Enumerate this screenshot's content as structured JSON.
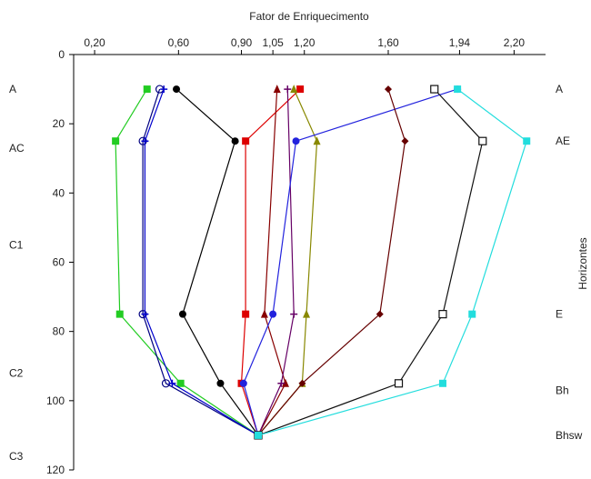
{
  "chart_data": {
    "type": "line",
    "title": "Fator de Enriquecimento",
    "right_axis_label": "Horizontes",
    "x_ticks": [
      "0,20",
      "0,60",
      "0,90",
      "1,05",
      "1,20",
      "1,60",
      "1,94",
      "2,20"
    ],
    "x_tick_values": [
      0.2,
      0.6,
      0.9,
      1.05,
      1.2,
      1.6,
      1.94,
      2.2
    ],
    "xlim": [
      0.1,
      2.35
    ],
    "y_ticks": [
      "0",
      "20",
      "40",
      "60",
      "80",
      "100",
      "120"
    ],
    "y_tick_values": [
      0,
      20,
      40,
      60,
      80,
      100,
      120
    ],
    "ylim": [
      0,
      120
    ],
    "y_inverted": true,
    "left_horizons": [
      {
        "label": "A",
        "depth": 10
      },
      {
        "label": "AC",
        "depth": 27
      },
      {
        "label": "C1",
        "depth": 55
      },
      {
        "label": "C2",
        "depth": 92
      },
      {
        "label": "C3",
        "depth": 116
      }
    ],
    "right_horizons": [
      {
        "label": "A",
        "depth": 10
      },
      {
        "label": "AE",
        "depth": 25
      },
      {
        "label": "E",
        "depth": 75
      },
      {
        "label": "Bh",
        "depth": 97
      },
      {
        "label": "Bhsw",
        "depth": 110
      }
    ],
    "series": [
      {
        "color": "#22cc22",
        "marker": "square",
        "points": [
          [
            0.45,
            10
          ],
          [
            0.3,
            25
          ],
          [
            0.32,
            75
          ],
          [
            0.61,
            95
          ],
          [
            0.98,
            110
          ]
        ]
      },
      {
        "color": "#000080",
        "marker": "circle-open",
        "points": [
          [
            0.51,
            10
          ],
          [
            0.43,
            25
          ],
          [
            0.43,
            75
          ],
          [
            0.54,
            95
          ],
          [
            0.98,
            110
          ]
        ]
      },
      {
        "color": "#0000cc",
        "marker": "plus",
        "points": [
          [
            0.53,
            10
          ],
          [
            0.44,
            25
          ],
          [
            0.44,
            75
          ],
          [
            0.57,
            95
          ],
          [
            0.98,
            110
          ]
        ]
      },
      {
        "color": "#000000",
        "marker": "circle",
        "points": [
          [
            0.59,
            10
          ],
          [
            0.87,
            25
          ],
          [
            0.62,
            75
          ],
          [
            0.8,
            95
          ],
          [
            0.98,
            110
          ]
        ]
      },
      {
        "color": "#dd0000",
        "marker": "square",
        "points": [
          [
            1.18,
            10
          ],
          [
            0.92,
            25
          ],
          [
            0.92,
            75
          ],
          [
            0.9,
            95
          ],
          [
            0.98,
            110
          ]
        ]
      },
      {
        "color": "#880000",
        "marker": "triangle",
        "points": [
          [
            1.07,
            10
          ],
          [
            1.01,
            75
          ],
          [
            1.11,
            95
          ],
          [
            0.98,
            110
          ]
        ]
      },
      {
        "color": "#660066",
        "marker": "plus",
        "points": [
          [
            1.12,
            10
          ],
          [
            1.15,
            75
          ],
          [
            1.09,
            95
          ],
          [
            0.98,
            110
          ]
        ]
      },
      {
        "color": "#888800",
        "marker": "triangle",
        "points": [
          [
            1.15,
            10
          ],
          [
            1.26,
            25
          ],
          [
            1.21,
            75
          ],
          [
            1.19,
            95
          ],
          [
            0.98,
            110
          ]
        ]
      },
      {
        "color": "#2222dd",
        "marker": "circle",
        "points": [
          [
            1.93,
            10
          ],
          [
            1.16,
            25
          ],
          [
            1.05,
            75
          ],
          [
            0.91,
            95
          ],
          [
            0.98,
            110
          ]
        ]
      },
      {
        "color": "#660000",
        "marker": "diamond",
        "points": [
          [
            1.6,
            10
          ],
          [
            1.68,
            25
          ],
          [
            1.56,
            75
          ],
          [
            1.19,
            95
          ],
          [
            0.98,
            110
          ]
        ]
      },
      {
        "color": "#111111",
        "marker": "square-open",
        "points": [
          [
            1.82,
            10
          ],
          [
            2.05,
            25
          ],
          [
            1.86,
            75
          ],
          [
            1.65,
            95
          ],
          [
            0.98,
            110
          ]
        ]
      },
      {
        "color": "#22dddd",
        "marker": "square",
        "points": [
          [
            1.93,
            10
          ],
          [
            2.26,
            25
          ],
          [
            2.0,
            75
          ],
          [
            1.86,
            95
          ],
          [
            0.98,
            110
          ]
        ]
      }
    ]
  }
}
